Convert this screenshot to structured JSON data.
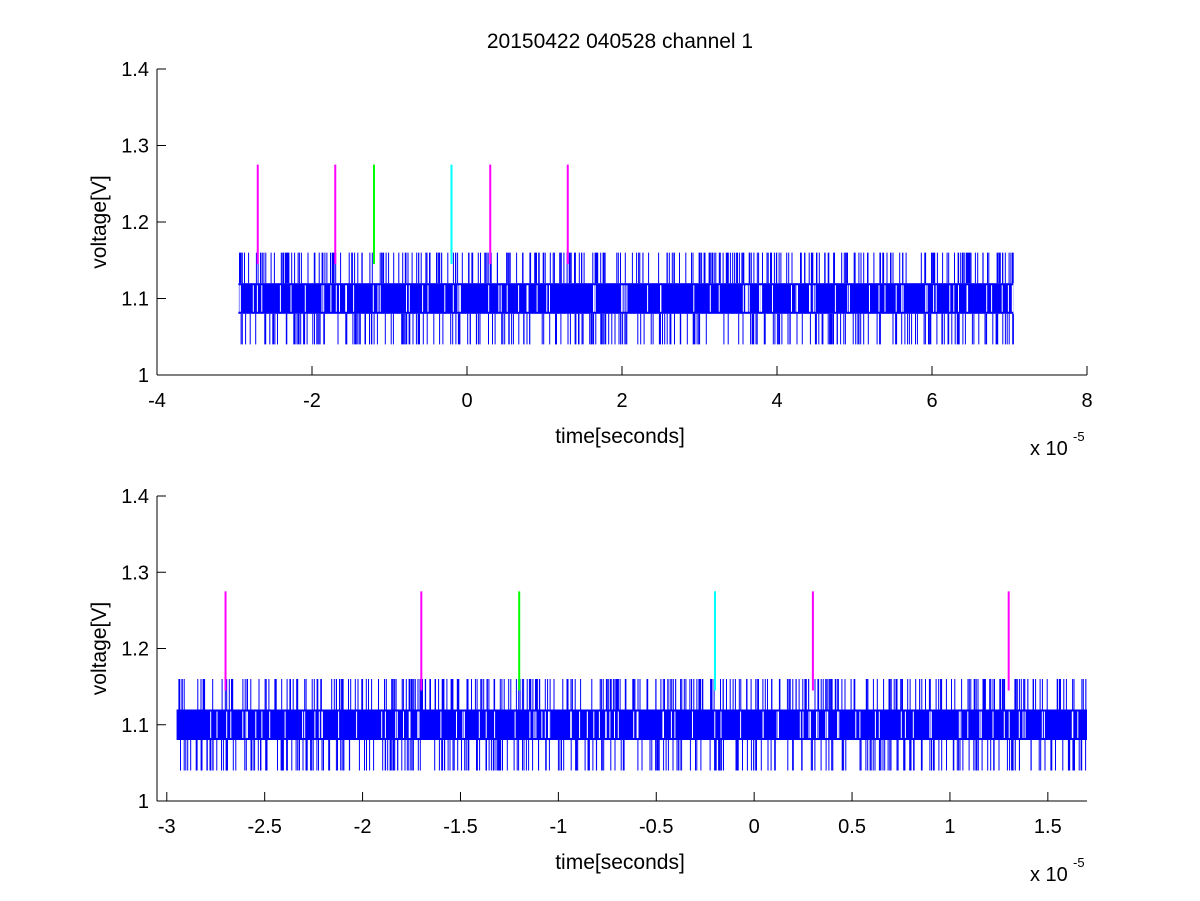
{
  "title": "20150422 040528 channel 1",
  "chart_data": [
    {
      "type": "line",
      "title": "20150422 040528 channel 1",
      "xlabel": "time[seconds]",
      "ylabel": "voltage[V]",
      "x_exponent_label": "x 10",
      "x_exponent": "-5",
      "xlim": [
        -4,
        8
      ],
      "ylim": [
        1,
        1.4
      ],
      "xticks": [
        -4,
        -2,
        0,
        2,
        4,
        6,
        8
      ],
      "xtick_labels": [
        "-4",
        "-2",
        "0",
        "2",
        "4",
        "6",
        "8"
      ],
      "yticks": [
        1,
        1.1,
        1.2,
        1.3,
        1.4
      ],
      "ytick_labels": [
        "1",
        "1.1",
        "1.2",
        "1.3",
        "1.4"
      ],
      "grid": false,
      "signal": {
        "color": "#0000ff",
        "x_start": -2.95,
        "x_end": 7.05,
        "band_low": 1.08,
        "band_high": 1.12,
        "spike_high": 1.16,
        "spike_low": 1.04
      },
      "markers": [
        {
          "x": -2.7,
          "color": "#ff00ff",
          "y_low": 1.145,
          "y_high": 1.275
        },
        {
          "x": -1.7,
          "color": "#ff00ff",
          "y_low": 1.145,
          "y_high": 1.275
        },
        {
          "x": -1.2,
          "color": "#00ff00",
          "y_low": 1.145,
          "y_high": 1.275
        },
        {
          "x": -0.2,
          "color": "#00ffff",
          "y_low": 1.145,
          "y_high": 1.275
        },
        {
          "x": 0.3,
          "color": "#ff00ff",
          "y_low": 1.145,
          "y_high": 1.275
        },
        {
          "x": 1.3,
          "color": "#ff00ff",
          "y_low": 1.145,
          "y_high": 1.275
        }
      ]
    },
    {
      "type": "line",
      "title": "",
      "xlabel": "time[seconds]",
      "ylabel": "voltage[V]",
      "x_exponent_label": "x 10",
      "x_exponent": "-5",
      "xlim": [
        -3.05,
        1.7
      ],
      "ylim": [
        1,
        1.4
      ],
      "xticks": [
        -3,
        -2.5,
        -2,
        -1.5,
        -1,
        -0.5,
        0,
        0.5,
        1,
        1.5
      ],
      "xtick_labels": [
        "-3",
        "-2.5",
        "-2",
        "-1.5",
        "-1",
        "-0.5",
        "0",
        "0.5",
        "1",
        "1.5"
      ],
      "yticks": [
        1,
        1.1,
        1.2,
        1.3,
        1.4
      ],
      "ytick_labels": [
        "1",
        "1.1",
        "1.2",
        "1.3",
        "1.4"
      ],
      "grid": false,
      "signal": {
        "color": "#0000ff",
        "x_start": -2.95,
        "x_end": 1.7,
        "band_low": 1.08,
        "band_high": 1.12,
        "spike_high": 1.16,
        "spike_low": 1.04
      },
      "markers": [
        {
          "x": -2.7,
          "color": "#ff00ff",
          "y_low": 1.145,
          "y_high": 1.275
        },
        {
          "x": -1.7,
          "color": "#ff00ff",
          "y_low": 1.145,
          "y_high": 1.275
        },
        {
          "x": -1.2,
          "color": "#00ff00",
          "y_low": 1.145,
          "y_high": 1.275
        },
        {
          "x": -0.2,
          "color": "#00ffff",
          "y_low": 1.145,
          "y_high": 1.275
        },
        {
          "x": 0.3,
          "color": "#ff00ff",
          "y_low": 1.145,
          "y_high": 1.275
        },
        {
          "x": 1.3,
          "color": "#ff00ff",
          "y_low": 1.145,
          "y_high": 1.275
        }
      ]
    }
  ]
}
